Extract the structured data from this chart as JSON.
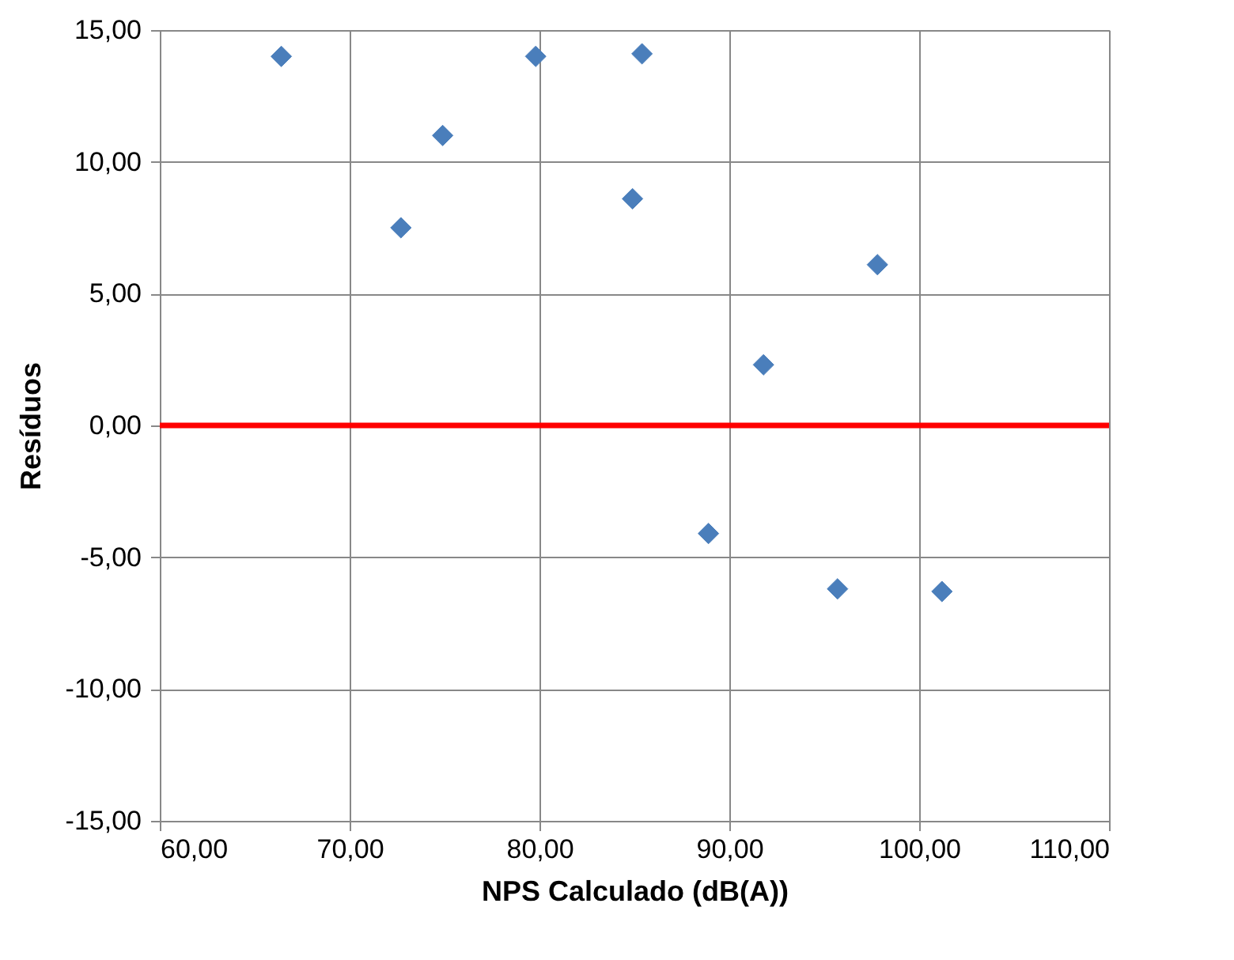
{
  "chart_data": {
    "type": "scatter",
    "xlabel": "NPS Calculado (dB(A))",
    "ylabel": "Resíduos",
    "x": [
      66.4,
      72.7,
      74.9,
      79.8,
      85.4,
      84.9,
      97.8,
      91.8,
      88.9,
      95.7,
      101.2
    ],
    "series": [
      {
        "color": "#4a7ebb",
        "values": [
          14.0,
          7.5,
          11.0,
          14.0,
          14.1,
          8.6,
          6.1,
          2.3,
          -4.1,
          -6.2,
          -6.3
        ]
      }
    ],
    "marker": "diamond",
    "grid": true,
    "xlim": [
      60,
      110
    ],
    "ylim": [
      -15,
      15
    ],
    "xticks": [
      {
        "value": 60,
        "label": "60,00"
      },
      {
        "value": 70,
        "label": "70,00"
      },
      {
        "value": 80,
        "label": "80,00"
      },
      {
        "value": 90,
        "label": "90,00"
      },
      {
        "value": 100,
        "label": "100,00"
      },
      {
        "value": 110,
        "label": "110,00"
      }
    ],
    "yticks": [
      {
        "value": -15,
        "label": "-15,00"
      },
      {
        "value": -10,
        "label": "-10,00"
      },
      {
        "value": -5,
        "label": "-5,00"
      },
      {
        "value": 0,
        "label": "0,00"
      },
      {
        "value": 5,
        "label": "5,00"
      },
      {
        "value": 10,
        "label": "10,00"
      },
      {
        "value": 15,
        "label": "15,00"
      }
    ],
    "ref_lines": [
      {
        "axis": "y",
        "value": 0,
        "color": "#ff0000",
        "line_style": "solid"
      }
    ]
  }
}
